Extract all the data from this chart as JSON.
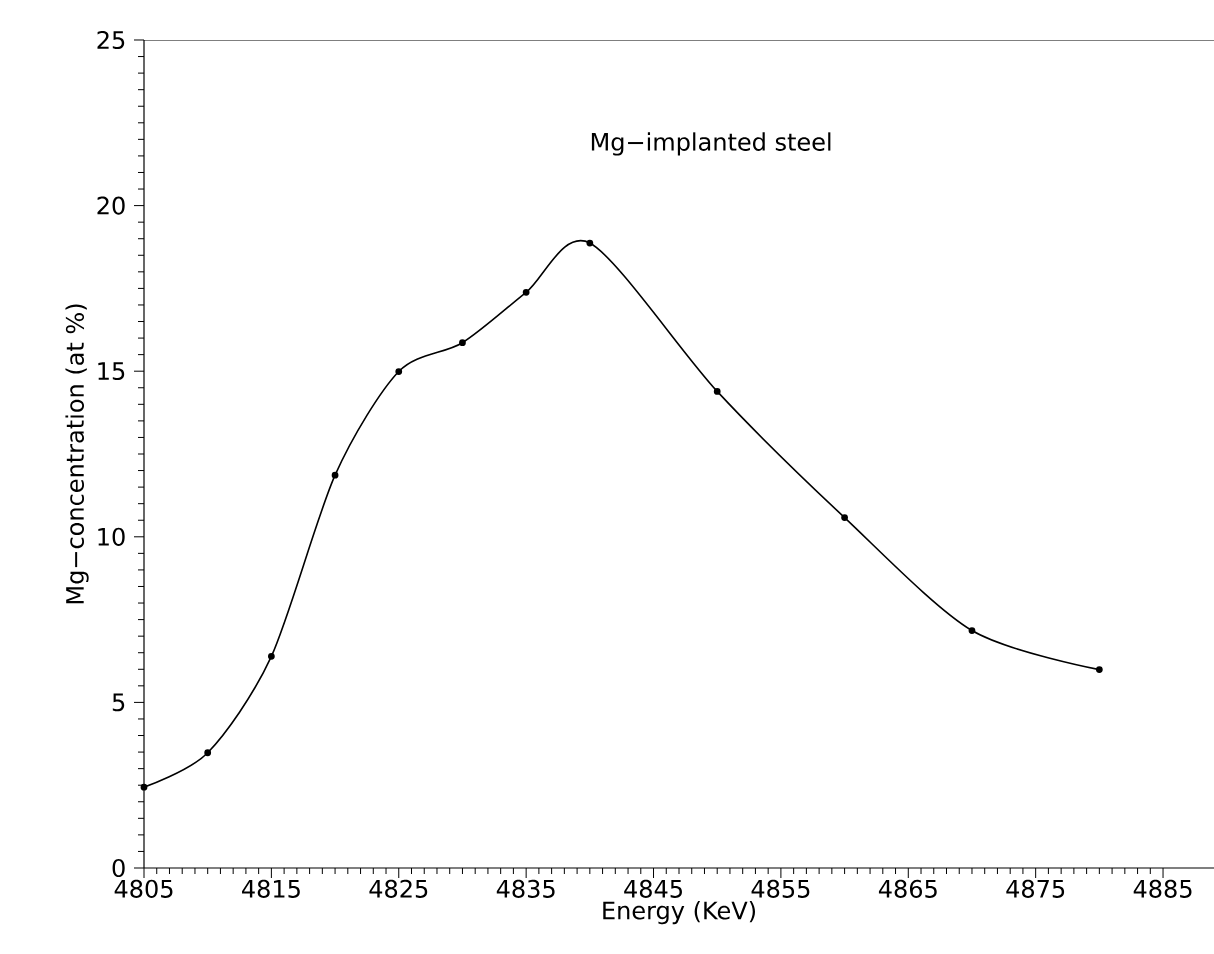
{
  "chart_data": {
    "type": "line",
    "title": "Mg−implanted steel",
    "xlabel": "Energy (KeV)",
    "ylabel": "Mg−concentration (at %)",
    "x": [
      4805,
      4810,
      4815,
      4820,
      4825,
      4830,
      4835,
      4840,
      4850,
      4860,
      4870,
      4880
    ],
    "series": [
      {
        "color": "#000000",
        "values": [
          2.44,
          3.48,
          6.39,
          11.86,
          14.99,
          15.86,
          17.38,
          18.87,
          14.39,
          10.58,
          7.17,
          5.99
        ]
      }
    ],
    "xlim": [
      4805,
      4889
    ],
    "xticks": [
      4805,
      4815,
      4825,
      4835,
      4845,
      4855,
      4865,
      4875,
      4885
    ],
    "ylim": [
      0,
      25
    ],
    "yticks": [
      0,
      5,
      10,
      15,
      20,
      25
    ],
    "marker": "circle",
    "line_style": "solid"
  }
}
